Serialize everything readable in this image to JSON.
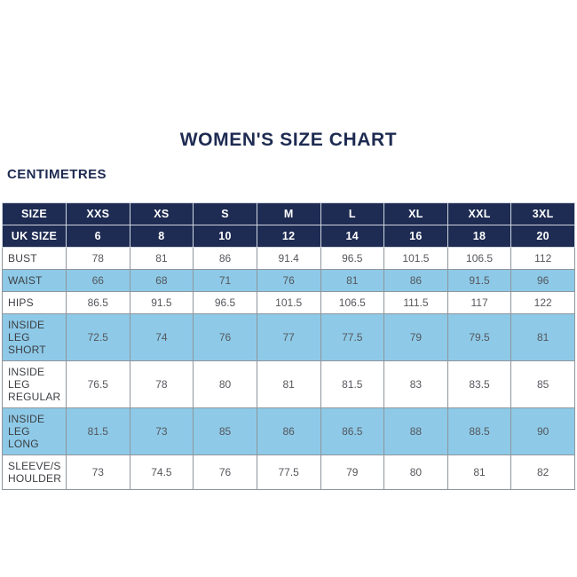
{
  "page": {
    "title": "WOMEN'S SIZE CHART",
    "unit_label": "CENTIMETRES"
  },
  "colors": {
    "navy": "#1e2b52",
    "light_blue": "#8ecae8",
    "background": "#ffffff",
    "label_text": "#3c3e42",
    "value_text": "#55575c",
    "grid_line": "#8e959c"
  },
  "chart_data": {
    "type": "table",
    "title": "WOMEN'S SIZE CHART",
    "unit": "CENTIMETRES",
    "columns": [
      "SIZE",
      "XXS",
      "XS",
      "S",
      "M",
      "L",
      "XL",
      "XXL",
      "3XL"
    ],
    "uk_size_row": {
      "label": "UK SIZE",
      "values": [
        "6",
        "8",
        "10",
        "12",
        "14",
        "16",
        "18",
        "20"
      ]
    },
    "rows": [
      {
        "label": "BUST",
        "values": [
          "78",
          "81",
          "86",
          "91.4",
          "96.5",
          "101.5",
          "106.5",
          "112"
        ]
      },
      {
        "label": "WAIST",
        "values": [
          "66",
          "68",
          "71",
          "76",
          "81",
          "86",
          "91.5",
          "96"
        ]
      },
      {
        "label": "HIPS",
        "values": [
          "86.5",
          "91.5",
          "96.5",
          "101.5",
          "106.5",
          "111.5",
          "117",
          "122"
        ]
      },
      {
        "label": "INSIDE LEG SHORT",
        "values": [
          "72.5",
          "74",
          "76",
          "77",
          "77.5",
          "79",
          "79.5",
          "81"
        ]
      },
      {
        "label": "INSIDE LEG REGULAR",
        "values": [
          "76.5",
          "78",
          "80",
          "81",
          "81.5",
          "83",
          "83.5",
          "85"
        ]
      },
      {
        "label": "INSIDE LEG LONG",
        "values": [
          "81.5",
          "73",
          "85",
          "86",
          "86.5",
          "88",
          "88.5",
          "90"
        ]
      },
      {
        "label": "SLEEVE/SHOULDER",
        "values": [
          "73",
          "74.5",
          "76",
          "77.5",
          "79",
          "80",
          "81",
          "82"
        ]
      }
    ]
  }
}
